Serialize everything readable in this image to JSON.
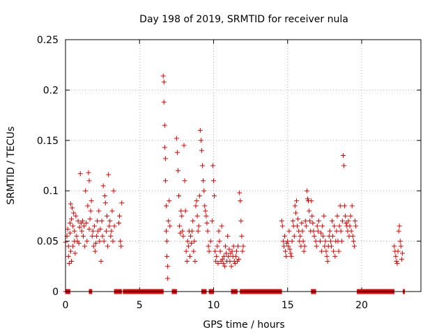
{
  "chart_data": {
    "type": "scatter",
    "title": "Day 198 of 2019, SRMTID for receiver nula",
    "xlabel": "GPS time / hours",
    "ylabel": "SRMTID / TECUs",
    "xlim": [
      0,
      24
    ],
    "ylim": [
      0,
      0.25
    ],
    "xticks": [
      0,
      5,
      10,
      15,
      20
    ],
    "xtick_labels": [
      "0",
      "5",
      "10",
      "15",
      "20"
    ],
    "yticks": [
      0,
      0.05,
      0.1,
      0.15,
      0.2,
      0.25
    ],
    "ytick_labels": [
      "0",
      "0.05",
      "0.1",
      "0.15",
      "0.2",
      "0.25"
    ],
    "grid": true,
    "marker": "+",
    "color": "#e00000",
    "series": [
      {
        "name": "SRMTID",
        "points": [
          [
            0.0,
            0.049
          ],
          [
            0.1,
            0.055
          ],
          [
            0.15,
            0.062
          ],
          [
            0.2,
            0.035
          ],
          [
            0.2,
            0.045
          ],
          [
            0.25,
            0.028
          ],
          [
            0.3,
            0.058
          ],
          [
            0.3,
            0.068
          ],
          [
            0.35,
            0.087
          ],
          [
            0.35,
            0.04
          ],
          [
            0.4,
            0.072
          ],
          [
            0.4,
            0.03
          ],
          [
            0.45,
            0.083
          ],
          [
            0.5,
            0.065
          ],
          [
            0.5,
            0.045
          ],
          [
            0.55,
            0.078
          ],
          [
            0.6,
            0.05
          ],
          [
            0.6,
            0.06
          ],
          [
            0.65,
            0.038
          ],
          [
            0.7,
            0.075
          ],
          [
            0.75,
            0.055
          ],
          [
            0.8,
            0.05
          ],
          [
            0.85,
            0.07
          ],
          [
            0.9,
            0.048
          ],
          [
            0.95,
            0.064
          ],
          [
            1.0,
            0.117
          ],
          [
            1.05,
            0.068
          ],
          [
            1.1,
            0.06
          ],
          [
            1.15,
            0.07
          ],
          [
            1.2,
            0.055
          ],
          [
            1.25,
            0.065
          ],
          [
            1.3,
            0.045
          ],
          [
            1.35,
            0.1
          ],
          [
            1.4,
            0.068
          ],
          [
            1.45,
            0.05
          ],
          [
            1.5,
            0.085
          ],
          [
            1.55,
            0.118
          ],
          [
            1.6,
            0.11
          ],
          [
            1.6,
            0.062
          ],
          [
            1.65,
            0.072
          ],
          [
            1.7,
            0.08
          ],
          [
            1.75,
            0.09
          ],
          [
            1.8,
            0.055
          ],
          [
            1.85,
            0.06
          ],
          [
            1.9,
            0.045
          ],
          [
            1.95,
            0.065
          ],
          [
            2.0,
            0.04
          ],
          [
            2.05,
            0.048
          ],
          [
            2.1,
            0.055
          ],
          [
            2.15,
            0.07
          ],
          [
            2.2,
            0.06
          ],
          [
            2.25,
            0.08
          ],
          [
            2.3,
            0.05
          ],
          [
            2.35,
            0.062
          ],
          [
            2.4,
            0.03
          ],
          [
            2.45,
            0.07
          ],
          [
            2.5,
            0.055
          ],
          [
            2.55,
            0.105
          ],
          [
            2.6,
            0.05
          ],
          [
            2.65,
            0.095
          ],
          [
            2.7,
            0.088
          ],
          [
            2.75,
            0.06
          ],
          [
            2.8,
            0.075
          ],
          [
            2.85,
            0.045
          ],
          [
            2.9,
            0.116
          ],
          [
            2.95,
            0.065
          ],
          [
            3.0,
            0.07
          ],
          [
            3.05,
            0.055
          ],
          [
            3.1,
            0.06
          ],
          [
            3.15,
            0.08
          ],
          [
            3.2,
            0.05
          ],
          [
            3.25,
            0.1
          ],
          [
            3.3,
            0.065
          ],
          [
            3.6,
            0.068
          ],
          [
            3.65,
            0.075
          ],
          [
            3.7,
            0.05
          ],
          [
            3.75,
            0.045
          ],
          [
            3.8,
            0.088
          ],
          [
            6.6,
            0.214
          ],
          [
            6.65,
            0.208
          ],
          [
            6.65,
            0.188
          ],
          [
            6.7,
            0.165
          ],
          [
            6.7,
            0.143
          ],
          [
            6.75,
            0.132
          ],
          [
            6.75,
            0.11
          ],
          [
            6.8,
            0.085
          ],
          [
            6.8,
            0.06
          ],
          [
            6.85,
            0.05
          ],
          [
            6.85,
            0.035
          ],
          [
            6.9,
            0.025
          ],
          [
            6.9,
            0.013
          ],
          [
            6.95,
            0.07
          ],
          [
            7.0,
            0.09
          ],
          [
            7.05,
            0.065
          ],
          [
            7.5,
            0.152
          ],
          [
            7.55,
            0.138
          ],
          [
            7.6,
            0.12
          ],
          [
            7.65,
            0.095
          ],
          [
            7.7,
            0.065
          ],
          [
            7.75,
            0.058
          ],
          [
            7.8,
            0.08
          ],
          [
            7.85,
            0.075
          ],
          [
            7.9,
            0.06
          ],
          [
            7.95,
            0.055
          ],
          [
            8.0,
            0.145
          ],
          [
            8.05,
            0.11
          ],
          [
            8.1,
            0.08
          ],
          [
            8.15,
            0.04
          ],
          [
            8.2,
            0.03
          ],
          [
            8.25,
            0.05
          ],
          [
            8.3,
            0.045
          ],
          [
            8.35,
            0.06
          ],
          [
            8.4,
            0.035
          ],
          [
            8.45,
            0.055
          ],
          [
            8.5,
            0.048
          ],
          [
            8.55,
            0.06
          ],
          [
            8.6,
            0.07
          ],
          [
            8.65,
            0.04
          ],
          [
            8.7,
            0.05
          ],
          [
            8.75,
            0.03
          ],
          [
            8.8,
            0.085
          ],
          [
            8.85,
            0.09
          ],
          [
            8.9,
            0.075
          ],
          [
            8.95,
            0.06
          ],
          [
            9.0,
            0.065
          ],
          [
            9.05,
            0.095
          ],
          [
            9.1,
            0.16
          ],
          [
            9.15,
            0.15
          ],
          [
            9.2,
            0.14
          ],
          [
            9.25,
            0.125
          ],
          [
            9.3,
            0.11
          ],
          [
            9.35,
            0.1
          ],
          [
            9.4,
            0.085
          ],
          [
            9.45,
            0.08
          ],
          [
            9.5,
            0.075
          ],
          [
            9.55,
            0.068
          ],
          [
            9.6,
            0.06
          ],
          [
            9.65,
            0.045
          ],
          [
            9.7,
            0.04
          ],
          [
            9.8,
            0.05
          ],
          [
            9.9,
            0.07
          ],
          [
            9.95,
            0.125
          ],
          [
            10.0,
            0.11
          ],
          [
            10.05,
            0.095
          ],
          [
            10.1,
            0.04
          ],
          [
            10.15,
            0.03
          ],
          [
            10.2,
            0.035
          ],
          [
            10.25,
            0.045
          ],
          [
            10.3,
            0.028
          ],
          [
            10.35,
            0.06
          ],
          [
            10.4,
            0.05
          ],
          [
            10.45,
            0.04
          ],
          [
            10.5,
            0.03
          ],
          [
            10.55,
            0.065
          ],
          [
            10.6,
            0.032
          ],
          [
            10.65,
            0.028
          ],
          [
            10.7,
            0.035
          ],
          [
            10.75,
            0.025
          ],
          [
            10.8,
            0.045
          ],
          [
            10.85,
            0.038
          ],
          [
            10.9,
            0.03
          ],
          [
            10.95,
            0.055
          ],
          [
            11.0,
            0.035
          ],
          [
            11.05,
            0.042
          ],
          [
            11.1,
            0.03
          ],
          [
            11.15,
            0.038
          ],
          [
            11.2,
            0.025
          ],
          [
            11.25,
            0.04
          ],
          [
            11.3,
            0.035
          ],
          [
            11.35,
            0.045
          ],
          [
            11.4,
            0.03
          ],
          [
            11.45,
            0.028
          ],
          [
            11.5,
            0.035
          ],
          [
            11.55,
            0.04
          ],
          [
            11.6,
            0.03
          ],
          [
            11.65,
            0.045
          ],
          [
            11.7,
            0.032
          ],
          [
            11.75,
            0.098
          ],
          [
            11.8,
            0.09
          ],
          [
            11.85,
            0.07
          ],
          [
            11.9,
            0.055
          ],
          [
            11.95,
            0.04
          ],
          [
            12.0,
            0.045
          ],
          [
            14.6,
            0.07
          ],
          [
            14.65,
            0.065
          ],
          [
            14.7,
            0.05
          ],
          [
            14.75,
            0.045
          ],
          [
            14.8,
            0.055
          ],
          [
            14.85,
            0.04
          ],
          [
            14.9,
            0.035
          ],
          [
            14.95,
            0.048
          ],
          [
            15.0,
            0.05
          ],
          [
            15.05,
            0.045
          ],
          [
            15.1,
            0.06
          ],
          [
            15.15,
            0.042
          ],
          [
            15.2,
            0.038
          ],
          [
            15.25,
            0.035
          ],
          [
            15.3,
            0.05
          ],
          [
            15.35,
            0.07
          ],
          [
            15.4,
            0.065
          ],
          [
            15.45,
            0.055
          ],
          [
            15.5,
            0.085
          ],
          [
            15.55,
            0.078
          ],
          [
            15.6,
            0.09
          ],
          [
            15.65,
            0.065
          ],
          [
            15.7,
            0.072
          ],
          [
            15.75,
            0.06
          ],
          [
            15.8,
            0.05
          ],
          [
            15.85,
            0.055
          ],
          [
            15.9,
            0.045
          ],
          [
            15.95,
            0.068
          ],
          [
            16.0,
            0.06
          ],
          [
            16.05,
            0.05
          ],
          [
            16.1,
            0.04
          ],
          [
            16.15,
            0.045
          ],
          [
            16.2,
            0.07
          ],
          [
            16.25,
            0.065
          ],
          [
            16.3,
            0.1
          ],
          [
            16.35,
            0.092
          ],
          [
            16.4,
            0.09
          ],
          [
            16.45,
            0.08
          ],
          [
            16.5,
            0.07
          ],
          [
            16.55,
            0.06
          ],
          [
            16.6,
            0.09
          ],
          [
            16.65,
            0.075
          ],
          [
            16.7,
            0.068
          ],
          [
            16.75,
            0.06
          ],
          [
            16.8,
            0.055
          ],
          [
            16.9,
            0.05
          ],
          [
            16.95,
            0.045
          ],
          [
            17.0,
            0.065
          ],
          [
            17.05,
            0.06
          ],
          [
            17.1,
            0.07
          ],
          [
            17.2,
            0.05
          ],
          [
            17.25,
            0.058
          ],
          [
            17.3,
            0.04
          ],
          [
            17.35,
            0.065
          ],
          [
            17.4,
            0.055
          ],
          [
            17.45,
            0.075
          ],
          [
            17.5,
            0.045
          ],
          [
            17.55,
            0.05
          ],
          [
            17.6,
            0.04
          ],
          [
            17.65,
            0.035
          ],
          [
            17.7,
            0.03
          ],
          [
            17.75,
            0.045
          ],
          [
            17.8,
            0.055
          ],
          [
            17.85,
            0.06
          ],
          [
            17.9,
            0.05
          ],
          [
            17.95,
            0.045
          ],
          [
            18.0,
            0.07
          ],
          [
            18.05,
            0.055
          ],
          [
            18.1,
            0.04
          ],
          [
            18.15,
            0.065
          ],
          [
            18.2,
            0.035
          ],
          [
            18.25,
            0.05
          ],
          [
            18.3,
            0.06
          ],
          [
            18.35,
            0.075
          ],
          [
            18.4,
            0.05
          ],
          [
            18.45,
            0.04
          ],
          [
            18.5,
            0.065
          ],
          [
            18.55,
            0.085
          ],
          [
            18.6,
            0.06
          ],
          [
            18.65,
            0.05
          ],
          [
            18.7,
            0.07
          ],
          [
            18.75,
            0.135
          ],
          [
            18.8,
            0.125
          ],
          [
            18.85,
            0.085
          ],
          [
            18.9,
            0.075
          ],
          [
            18.95,
            0.068
          ],
          [
            19.0,
            0.065
          ],
          [
            19.05,
            0.06
          ],
          [
            19.1,
            0.07
          ],
          [
            19.15,
            0.055
          ],
          [
            19.2,
            0.065
          ],
          [
            19.25,
            0.075
          ],
          [
            19.3,
            0.06
          ],
          [
            19.35,
            0.085
          ],
          [
            19.4,
            0.055
          ],
          [
            19.45,
            0.05
          ],
          [
            19.5,
            0.045
          ],
          [
            19.55,
            0.07
          ],
          [
            19.6,
            0.065
          ],
          [
            22.2,
            0.045
          ],
          [
            22.25,
            0.04
          ],
          [
            22.3,
            0.035
          ],
          [
            22.35,
            0.03
          ],
          [
            22.4,
            0.028
          ],
          [
            22.45,
            0.04
          ],
          [
            22.5,
            0.06
          ],
          [
            22.55,
            0.065
          ],
          [
            22.6,
            0.05
          ],
          [
            22.65,
            0.045
          ],
          [
            22.7,
            0.032
          ],
          [
            22.75,
            0.038
          ]
        ]
      }
    ],
    "zero_segments": [
      [
        0.0,
        0.3
      ],
      [
        1.6,
        1.8
      ],
      [
        3.3,
        3.8
      ],
      [
        3.9,
        6.6
      ],
      [
        7.2,
        7.5
      ],
      [
        9.2,
        9.5
      ],
      [
        9.7,
        10.0
      ],
      [
        11.2,
        11.6
      ],
      [
        11.8,
        14.6
      ],
      [
        16.6,
        16.9
      ],
      [
        19.7,
        22.2
      ],
      [
        22.8,
        22.9
      ]
    ]
  }
}
